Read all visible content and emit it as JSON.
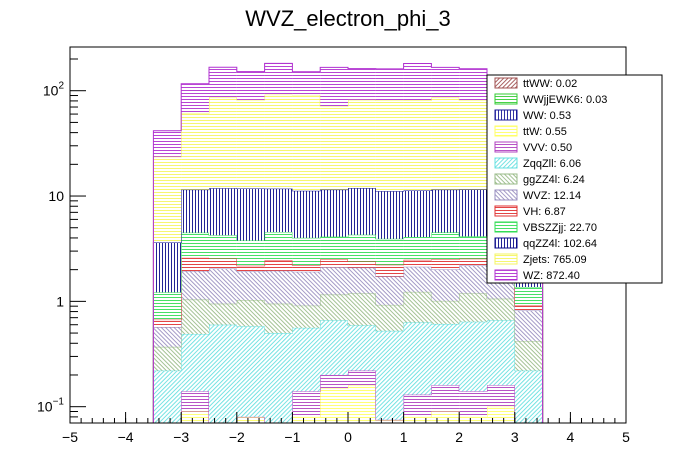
{
  "chart_data": {
    "type": "bar",
    "subtype": "stacked-histogram",
    "title": "WVZ_electron_phi_3",
    "xlabel": "",
    "ylabel": "",
    "xlim": [
      -5,
      5
    ],
    "ylim": [
      0.07,
      260
    ],
    "yscale": "log",
    "bin_edges": [
      -3.5,
      -3.0,
      -2.5,
      -2.0,
      -1.5,
      -1.0,
      -0.5,
      0.0,
      0.5,
      1.0,
      1.5,
      2.0,
      2.5,
      3.0,
      3.5
    ],
    "x_ticks": [
      "−5",
      "−4",
      "−3",
      "−2",
      "−1",
      "0",
      "1",
      "2",
      "3",
      "4",
      "5"
    ],
    "x_tick_values": [
      -5,
      -4,
      -3,
      -2,
      -1,
      0,
      1,
      2,
      3,
      4,
      5
    ],
    "y_ticks": [
      "10^-1",
      "1",
      "10",
      "10^2"
    ],
    "y_tick_values": [
      0.1,
      1,
      10,
      100
    ],
    "legend_position": "top-right",
    "series": [
      {
        "name": "ttWW",
        "legend": "ttWW: 0.02",
        "color": "#a05050",
        "values": [
          0,
          0,
          0,
          0,
          0,
          0,
          0,
          0.005,
          0,
          0,
          0,
          0,
          0,
          0
        ]
      },
      {
        "name": "WWjjEWK6",
        "legend": "WWjjEWK6: 0.03",
        "color": "#33cc33",
        "values": [
          0,
          0,
          0,
          0,
          0,
          0,
          0,
          0.005,
          0.005,
          0,
          0,
          0,
          0,
          0
        ]
      },
      {
        "name": "WW",
        "legend": "WW: 0.53",
        "color": "#1a1a99",
        "values": [
          0,
          0,
          0,
          0,
          0,
          0,
          0.05,
          0.06,
          0,
          0,
          0,
          0,
          0,
          0
        ]
      },
      {
        "name": "ttW",
        "legend": "ttW: 0.55",
        "color": "#ffff66",
        "values": [
          0,
          0.09,
          0,
          0.08,
          0,
          0.08,
          0.1,
          0.09,
          0.07,
          0.08,
          0.09,
          0.08,
          0.1,
          0
        ]
      },
      {
        "name": "VVV",
        "legend": "VVV: 0.50",
        "color": "#b040c0",
        "values": [
          0,
          0.05,
          0,
          0,
          0,
          0.06,
          0.05,
          0.06,
          0,
          0.05,
          0.07,
          0.06,
          0.06,
          0
        ]
      },
      {
        "name": "ZqqZll",
        "legend": "ZqqZll: 6.06",
        "color": "#66e0e0",
        "values": [
          0.22,
          0.35,
          0.6,
          0.5,
          0.5,
          0.42,
          0.46,
          0.37,
          0.45,
          0.5,
          0.45,
          0.5,
          0.5,
          0.22
        ]
      },
      {
        "name": "ggZZ4l",
        "legend": "ggZZ4l: 6.24",
        "color": "#99bb88",
        "values": [
          0.15,
          0.55,
          0.35,
          0.45,
          0.45,
          0.35,
          0.5,
          0.6,
          0.4,
          0.6,
          0.4,
          0.55,
          0.4,
          0.2
        ]
      },
      {
        "name": "WVZ",
        "legend": "WVZ: 12.14",
        "color": "#9a8fc0",
        "values": [
          0.2,
          0.9,
          1.1,
          0.9,
          1.0,
          1.0,
          0.95,
          0.9,
          0.8,
          0.9,
          1.0,
          1.0,
          0.9,
          0.4
        ]
      },
      {
        "name": "VH",
        "legend": "VH: 6.87",
        "color": "#e03030",
        "values": [
          0.1,
          0.65,
          0.5,
          0.25,
          0.5,
          0.3,
          0.4,
          0.3,
          0.5,
          0.35,
          0.5,
          0.35,
          0.3,
          0.1
        ]
      },
      {
        "name": "VBSZZjj",
        "legend": "VBSZZjj: 22.70",
        "color": "#33dd55",
        "values": [
          0.55,
          1.9,
          1.7,
          1.6,
          2.1,
          1.8,
          1.6,
          1.9,
          1.7,
          1.6,
          2.0,
          1.6,
          1.5,
          0.45
        ]
      },
      {
        "name": "qqZZ4l",
        "legend": "qqZZ4l: 102.64",
        "color": "#0a0a8a",
        "values": [
          2.4,
          7.0,
          7.6,
          8.0,
          7.2,
          7.2,
          7.4,
          7.6,
          7.2,
          7.2,
          7.0,
          7.4,
          6.6,
          2.1
        ]
      },
      {
        "name": "Zjets",
        "legend": "Zjets: 765.09",
        "color": "#f5f560",
        "values": [
          20,
          50,
          75,
          70,
          80,
          80,
          60,
          70,
          70,
          70,
          75,
          70,
          58,
          18
        ]
      },
      {
        "name": "WZ",
        "legend": "WZ: 872.40",
        "color": "#b030d0",
        "values": [
          18,
          55,
          80,
          70,
          90,
          60,
          95,
          80,
          80,
          100,
          80,
          80,
          55,
          17
        ]
      }
    ]
  }
}
